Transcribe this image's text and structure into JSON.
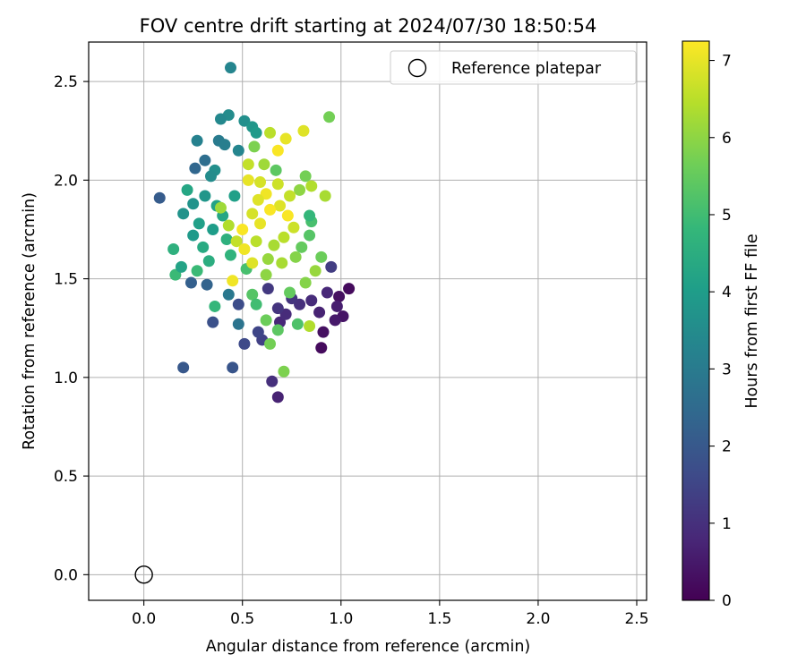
{
  "chart_data": {
    "type": "scatter",
    "title": "FOV centre drift starting at 2024/07/30 18:50:54",
    "xlabel": "Angular distance from reference (arcmin)",
    "ylabel": "Rotation from reference (arcmin)",
    "xlim": [
      -0.28,
      2.55
    ],
    "ylim": [
      -0.13,
      2.7
    ],
    "xticks": [
      0.0,
      0.5,
      1.0,
      1.5,
      2.0,
      2.5
    ],
    "xtick_labels": [
      "0.0",
      "0.5",
      "1.0",
      "1.5",
      "2.0",
      "2.5"
    ],
    "yticks": [
      0.0,
      0.5,
      1.0,
      1.5,
      2.0,
      2.5
    ],
    "ytick_labels": [
      "0.0",
      "0.5",
      "1.0",
      "1.5",
      "2.0",
      "2.5"
    ],
    "grid": true,
    "legend": {
      "placement": "top-right",
      "entries": [
        "Reference platepar"
      ]
    },
    "reference_point": {
      "name": "Reference platepar",
      "x": 0.0,
      "y": 0.0
    },
    "colorbar": {
      "label": "Hours from first FF file",
      "colormap": "viridis",
      "range": [
        0,
        7.25
      ],
      "ticks": [
        0,
        1,
        2,
        3,
        4,
        5,
        6,
        7
      ],
      "tick_labels": [
        "0",
        "1",
        "2",
        "3",
        "4",
        "5",
        "6",
        "7"
      ]
    },
    "series": [
      {
        "color_encoding": "hours",
        "points": [
          {
            "x": 1.04,
            "y": 1.45,
            "c": 0.2
          },
          {
            "x": 0.99,
            "y": 1.41,
            "c": 0.3
          },
          {
            "x": 1.01,
            "y": 1.31,
            "c": 0.4
          },
          {
            "x": 0.97,
            "y": 1.29,
            "c": 0.5
          },
          {
            "x": 0.91,
            "y": 1.23,
            "c": 0.3
          },
          {
            "x": 0.9,
            "y": 1.15,
            "c": 0.2
          },
          {
            "x": 0.98,
            "y": 1.36,
            "c": 0.6
          },
          {
            "x": 0.93,
            "y": 1.43,
            "c": 0.8
          },
          {
            "x": 0.89,
            "y": 1.33,
            "c": 0.7
          },
          {
            "x": 0.85,
            "y": 1.39,
            "c": 0.9
          },
          {
            "x": 0.79,
            "y": 1.37,
            "c": 1.0
          },
          {
            "x": 0.75,
            "y": 1.4,
            "c": 1.1
          },
          {
            "x": 0.69,
            "y": 1.28,
            "c": 0.8
          },
          {
            "x": 0.65,
            "y": 0.98,
            "c": 1.0
          },
          {
            "x": 0.68,
            "y": 0.9,
            "c": 0.7
          },
          {
            "x": 0.72,
            "y": 1.32,
            "c": 0.9
          },
          {
            "x": 0.63,
            "y": 1.45,
            "c": 1.2
          },
          {
            "x": 0.68,
            "y": 1.35,
            "c": 1.1
          },
          {
            "x": 0.95,
            "y": 1.56,
            "c": 1.3
          },
          {
            "x": 0.6,
            "y": 1.19,
            "c": 1.4
          },
          {
            "x": 0.58,
            "y": 1.23,
            "c": 1.5
          },
          {
            "x": 0.51,
            "y": 1.17,
            "c": 1.6
          },
          {
            "x": 0.48,
            "y": 1.37,
            "c": 1.7
          },
          {
            "x": 0.35,
            "y": 1.28,
            "c": 1.8
          },
          {
            "x": 0.45,
            "y": 1.05,
            "c": 1.9
          },
          {
            "x": 0.2,
            "y": 1.05,
            "c": 2.0
          },
          {
            "x": 0.08,
            "y": 1.91,
            "c": 2.1
          },
          {
            "x": 0.24,
            "y": 1.48,
            "c": 2.2
          },
          {
            "x": 0.32,
            "y": 1.47,
            "c": 2.3
          },
          {
            "x": 0.26,
            "y": 2.06,
            "c": 2.4
          },
          {
            "x": 0.31,
            "y": 2.1,
            "c": 2.6
          },
          {
            "x": 0.48,
            "y": 1.27,
            "c": 2.8
          },
          {
            "x": 0.43,
            "y": 1.42,
            "c": 2.9
          },
          {
            "x": 0.38,
            "y": 2.2,
            "c": 3.0
          },
          {
            "x": 0.41,
            "y": 2.18,
            "c": 3.1
          },
          {
            "x": 0.27,
            "y": 2.2,
            "c": 3.2
          },
          {
            "x": 0.44,
            "y": 2.57,
            "c": 3.3
          },
          {
            "x": 0.43,
            "y": 2.33,
            "c": 3.5
          },
          {
            "x": 0.39,
            "y": 2.31,
            "c": 3.4
          },
          {
            "x": 0.51,
            "y": 2.3,
            "c": 3.6
          },
          {
            "x": 0.55,
            "y": 2.27,
            "c": 3.8
          },
          {
            "x": 0.57,
            "y": 2.24,
            "c": 3.9
          },
          {
            "x": 0.48,
            "y": 2.15,
            "c": 3.3
          },
          {
            "x": 0.36,
            "y": 2.05,
            "c": 3.6
          },
          {
            "x": 0.2,
            "y": 1.83,
            "c": 3.7
          },
          {
            "x": 0.15,
            "y": 1.65,
            "c": 4.6
          },
          {
            "x": 0.16,
            "y": 1.52,
            "c": 4.9
          },
          {
            "x": 0.19,
            "y": 1.56,
            "c": 4.2
          },
          {
            "x": 0.22,
            "y": 1.95,
            "c": 4.3
          },
          {
            "x": 0.25,
            "y": 1.72,
            "c": 3.9
          },
          {
            "x": 0.28,
            "y": 1.78,
            "c": 4.1
          },
          {
            "x": 0.3,
            "y": 1.66,
            "c": 4.4
          },
          {
            "x": 0.33,
            "y": 1.59,
            "c": 4.5
          },
          {
            "x": 0.35,
            "y": 1.75,
            "c": 4.0
          },
          {
            "x": 0.37,
            "y": 1.87,
            "c": 4.2
          },
          {
            "x": 0.4,
            "y": 1.82,
            "c": 4.3
          },
          {
            "x": 0.42,
            "y": 1.7,
            "c": 4.6
          },
          {
            "x": 0.44,
            "y": 1.62,
            "c": 4.7
          },
          {
            "x": 0.46,
            "y": 1.92,
            "c": 4.1
          },
          {
            "x": 0.31,
            "y": 1.92,
            "c": 3.8
          },
          {
            "x": 0.36,
            "y": 1.36,
            "c": 4.8
          },
          {
            "x": 0.27,
            "y": 1.54,
            "c": 4.9
          },
          {
            "x": 0.25,
            "y": 1.88,
            "c": 3.7
          },
          {
            "x": 0.34,
            "y": 2.02,
            "c": 3.5
          },
          {
            "x": 0.52,
            "y": 1.55,
            "c": 5.1
          },
          {
            "x": 0.55,
            "y": 1.42,
            "c": 5.3
          },
          {
            "x": 0.57,
            "y": 1.37,
            "c": 5.0
          },
          {
            "x": 0.62,
            "y": 1.29,
            "c": 5.6
          },
          {
            "x": 0.64,
            "y": 1.17,
            "c": 5.7
          },
          {
            "x": 0.68,
            "y": 1.24,
            "c": 5.4
          },
          {
            "x": 0.71,
            "y": 1.03,
            "c": 5.8
          },
          {
            "x": 0.78,
            "y": 1.27,
            "c": 5.2
          },
          {
            "x": 0.84,
            "y": 1.26,
            "c": 6.4
          },
          {
            "x": 0.74,
            "y": 1.43,
            "c": 5.5
          },
          {
            "x": 0.82,
            "y": 1.48,
            "c": 5.9
          },
          {
            "x": 0.87,
            "y": 1.54,
            "c": 6.1
          },
          {
            "x": 0.9,
            "y": 1.61,
            "c": 5.6
          },
          {
            "x": 0.84,
            "y": 1.72,
            "c": 5.3
          },
          {
            "x": 0.85,
            "y": 1.79,
            "c": 5.1
          },
          {
            "x": 0.84,
            "y": 1.82,
            "c": 4.8
          },
          {
            "x": 0.79,
            "y": 1.95,
            "c": 6.0
          },
          {
            "x": 0.82,
            "y": 2.02,
            "c": 5.7
          },
          {
            "x": 0.85,
            "y": 1.97,
            "c": 6.4
          },
          {
            "x": 0.92,
            "y": 1.92,
            "c": 6.3
          },
          {
            "x": 0.94,
            "y": 2.32,
            "c": 5.7
          },
          {
            "x": 0.81,
            "y": 2.25,
            "c": 6.9
          },
          {
            "x": 0.72,
            "y": 2.21,
            "c": 7.0
          },
          {
            "x": 0.68,
            "y": 2.15,
            "c": 7.2
          },
          {
            "x": 0.64,
            "y": 2.24,
            "c": 6.5
          },
          {
            "x": 0.61,
            "y": 2.08,
            "c": 6.2
          },
          {
            "x": 0.67,
            "y": 2.05,
            "c": 5.4
          },
          {
            "x": 0.56,
            "y": 2.17,
            "c": 5.8
          },
          {
            "x": 0.53,
            "y": 2.08,
            "c": 6.6
          },
          {
            "x": 0.59,
            "y": 1.99,
            "c": 6.8
          },
          {
            "x": 0.62,
            "y": 1.93,
            "c": 7.1
          },
          {
            "x": 0.69,
            "y": 1.87,
            "c": 6.9
          },
          {
            "x": 0.73,
            "y": 1.82,
            "c": 7.2
          },
          {
            "x": 0.76,
            "y": 1.76,
            "c": 6.7
          },
          {
            "x": 0.71,
            "y": 1.71,
            "c": 6.5
          },
          {
            "x": 0.66,
            "y": 1.67,
            "c": 6.3
          },
          {
            "x": 0.63,
            "y": 1.6,
            "c": 6.1
          },
          {
            "x": 0.59,
            "y": 1.78,
            "c": 7.0
          },
          {
            "x": 0.55,
            "y": 1.83,
            "c": 6.8
          },
          {
            "x": 0.5,
            "y": 1.75,
            "c": 7.2
          },
          {
            "x": 0.47,
            "y": 1.69,
            "c": 6.6
          },
          {
            "x": 0.43,
            "y": 1.77,
            "c": 6.4
          },
          {
            "x": 0.39,
            "y": 1.86,
            "c": 6.2
          },
          {
            "x": 0.45,
            "y": 1.49,
            "c": 7.1
          },
          {
            "x": 0.55,
            "y": 1.58,
            "c": 6.9
          },
          {
            "x": 0.62,
            "y": 1.52,
            "c": 6.0
          },
          {
            "x": 0.7,
            "y": 1.58,
            "c": 6.3
          },
          {
            "x": 0.77,
            "y": 1.61,
            "c": 5.9
          },
          {
            "x": 0.8,
            "y": 1.66,
            "c": 5.5
          },
          {
            "x": 0.74,
            "y": 1.92,
            "c": 6.6
          },
          {
            "x": 0.53,
            "y": 2.0,
            "c": 7.0
          },
          {
            "x": 0.58,
            "y": 1.9,
            "c": 6.9
          },
          {
            "x": 0.51,
            "y": 1.65,
            "c": 7.1
          },
          {
            "x": 0.64,
            "y": 1.85,
            "c": 7.2
          },
          {
            "x": 0.57,
            "y": 1.69,
            "c": 6.5
          },
          {
            "x": 0.68,
            "y": 1.98,
            "c": 6.7
          }
        ]
      }
    ]
  }
}
